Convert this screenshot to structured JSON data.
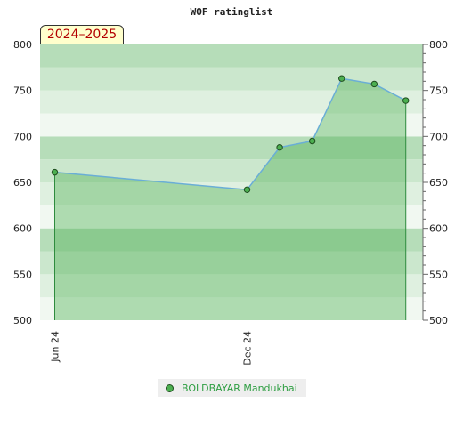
{
  "season_badge": "2024–2025",
  "chart_data": {
    "type": "area",
    "title": "WOF ratinglist",
    "xlabel": "",
    "ylabel": "",
    "ylim": [
      500,
      800
    ],
    "y_ticks": [
      500,
      550,
      600,
      650,
      700,
      750,
      800
    ],
    "x_tick_labels": [
      "Jun 24",
      "Dec 24"
    ],
    "grid": "horizontal bands",
    "legend_position": "bottom",
    "series": [
      {
        "name": "BOLDBAYAR Mandukhai",
        "color": "#6aaed6",
        "fill": "#4caf50",
        "x": [
          "2024-06-01",
          "2024-12-01",
          "2025-01-01",
          "2025-02-01",
          "2025-03-01",
          "2025-04-01",
          "2025-05-01"
        ],
        "values": [
          661,
          642,
          688,
          695,
          763,
          757,
          739
        ]
      }
    ]
  }
}
